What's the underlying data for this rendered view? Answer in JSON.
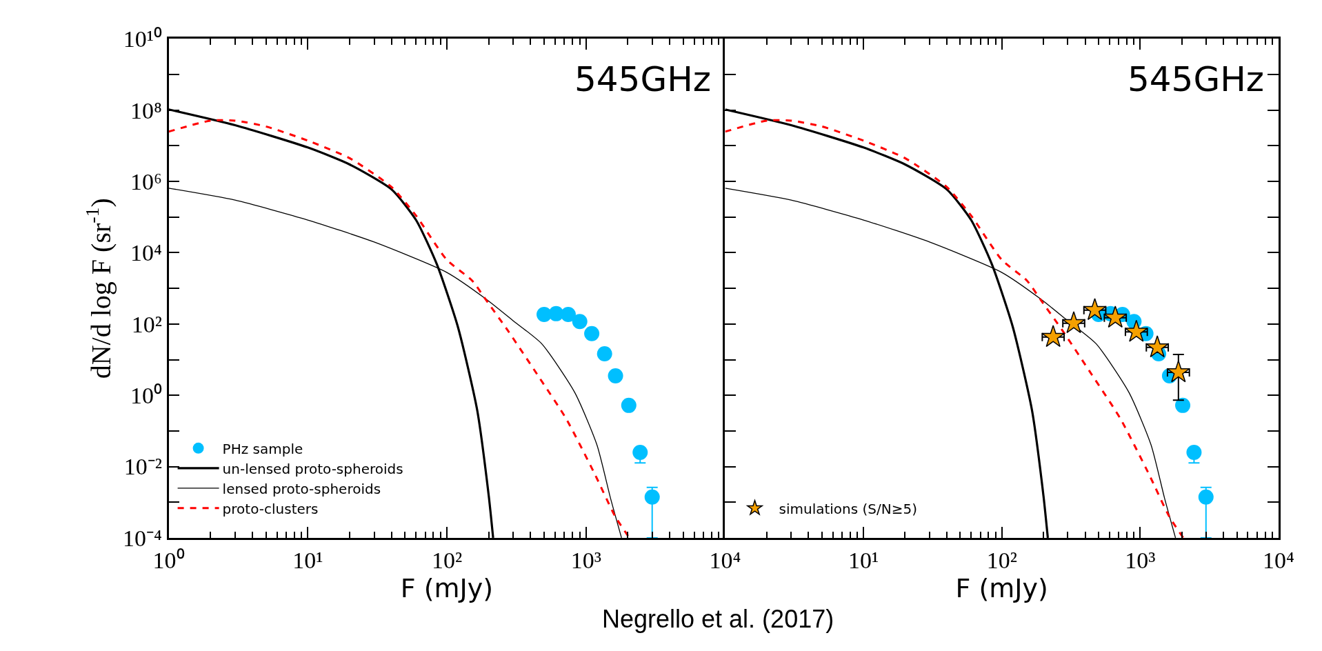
{
  "chart_data": [
    {
      "type": "line",
      "xlabel": "F (mJy)",
      "ylabel": "dN/d log F (sr$^{-1}$)",
      "log": "xy",
      "legend": "bottom left",
      "annotations": [
        "545GHz",
        "Negrello et al. (2017)"
      ],
      "xlim": [
        1,
        10000
      ],
      "ylim": [
        0.0001,
        10000000000
      ],
      "xticks": [
        {
          "value": 1,
          "label": "10⁰"
        },
        {
          "value": 2,
          "label": null
        },
        {
          "value": 3,
          "label": null
        },
        {
          "value": 4,
          "label": null
        },
        {
          "value": 5,
          "label": null
        },
        {
          "value": 6,
          "label": null
        },
        {
          "value": 7,
          "label": null
        },
        {
          "value": 8,
          "label": null
        },
        {
          "value": 9,
          "label": null
        },
        {
          "value": 10,
          "label": "10¹"
        },
        {
          "value": 20,
          "label": null
        },
        {
          "value": 30,
          "label": null
        },
        {
          "value": 40,
          "label": null
        },
        {
          "value": 50,
          "label": null
        },
        {
          "value": 60,
          "label": null
        },
        {
          "value": 70,
          "label": null
        },
        {
          "value": 80,
          "label": null
        },
        {
          "value": 90,
          "label": null
        },
        {
          "value": 100,
          "label": "10²"
        },
        {
          "value": 200,
          "label": null
        },
        {
          "value": 300,
          "label": null
        },
        {
          "value": 400,
          "label": null
        },
        {
          "value": 500,
          "label": null
        },
        {
          "value": 600,
          "label": null
        },
        {
          "value": 700,
          "label": null
        },
        {
          "value": 800,
          "label": null
        },
        {
          "value": 900,
          "label": null
        },
        {
          "value": 1000,
          "label": "10³"
        },
        {
          "value": 2000,
          "label": null
        },
        {
          "value": 3000,
          "label": null
        },
        {
          "value": 4000,
          "label": null
        },
        {
          "value": 5000,
          "label": null
        },
        {
          "value": 6000,
          "label": null
        },
        {
          "value": 7000,
          "label": null
        },
        {
          "value": 8000,
          "label": null
        },
        {
          "value": 9000,
          "label": null
        },
        {
          "value": 10000,
          "label": "10⁴"
        }
      ],
      "yticks": [
        {
          "value": 0.0001,
          "label": "10⁻⁴"
        },
        {
          "value": 0.001,
          "label": null
        },
        {
          "value": 0.01,
          "label": "10⁻²"
        },
        {
          "value": 0.1,
          "label": null
        },
        {
          "value": 1,
          "label": "10⁰"
        },
        {
          "value": 10,
          "label": null
        },
        {
          "value": 100,
          "label": "10²"
        },
        {
          "value": 1000,
          "label": null
        },
        {
          "value": 10000,
          "label": "10⁴"
        },
        {
          "value": 100000,
          "label": null
        },
        {
          "value": 1000000,
          "label": "10⁶"
        },
        {
          "value": 10000000,
          "label": null
        },
        {
          "value": 100000000,
          "label": "10⁸"
        },
        {
          "value": 1000000000,
          "label": null
        },
        {
          "value": 10000000000,
          "label": "10¹⁰"
        }
      ],
      "series": [
        {
          "name": "PHz sample",
          "type": "scatter",
          "marker": "circle",
          "color": "#00bfff",
          "x": [
            500,
            610,
            745,
            902,
            1100,
            1360,
            1630,
            2030,
            2450,
            2990
          ],
          "values": [
            186,
            195,
            186,
            117,
            54,
            14.6,
            3.5,
            0.52,
            0.025,
            0.0014
          ],
          "errors": [
            null,
            null,
            null,
            null,
            null,
            null,
            null,
            null,
            [
              0.0126,
              0.025
            ],
            [
              0.0001,
              0.0026
            ]
          ]
        },
        {
          "name": "un-lensed proto-spheroids",
          "line_style": "solid",
          "color": "#000000",
          "x": [
            1,
            3,
            10,
            20,
            40,
            60,
            84.6,
            120,
            165,
            200,
            215
          ],
          "values": [
            105000000,
            38000000,
            9000000,
            3000000,
            600000,
            83000,
            4800,
            83,
            0.39,
            0.0015,
            0.0001
          ]
        },
        {
          "name": "lensed proto-spheroids",
          "line_style": "solid",
          "color": "#000000",
          "x": [
            1,
            3,
            10,
            30,
            100,
            190,
            300,
            480,
            830,
            1200,
            1500,
            1800
          ],
          "values": [
            650000,
            300000,
            83000,
            20000,
            2800,
            510,
            123,
            28,
            1.2,
            0.04,
            0.0013,
            0.0001
          ]
        },
        {
          "name": "proto-clusters",
          "line_style": "dashed",
          "color": "#ff0000",
          "x": [
            1,
            2,
            3,
            5,
            10,
            20,
            40,
            60,
            100,
            152,
            190,
            274,
            447,
            720,
            1160,
            1620,
            2050
          ],
          "values": [
            25000000,
            51000000,
            51000000,
            35000000,
            14000000,
            4500000,
            700000,
            110000,
            6300,
            1650,
            490,
            66,
            3.8,
            0.22,
            0.006,
            0.0004,
            0.0001
          ]
        }
      ]
    },
    {
      "type": "line",
      "xlabel": "F (mJy)",
      "log": "xy",
      "legend": "bottom left",
      "tick_labels": "x",
      "annotations": [
        "545GHz"
      ],
      "xlim": [
        1,
        10000
      ],
      "ylim": [
        0.0001,
        10000000000
      ],
      "xticks": [
        {
          "value": 1,
          "label": null
        },
        {
          "value": 2,
          "label": null
        },
        {
          "value": 3,
          "label": null
        },
        {
          "value": 4,
          "label": null
        },
        {
          "value": 5,
          "label": null
        },
        {
          "value": 6,
          "label": null
        },
        {
          "value": 7,
          "label": null
        },
        {
          "value": 8,
          "label": null
        },
        {
          "value": 9,
          "label": null
        },
        {
          "value": 10,
          "label": "10¹"
        },
        {
          "value": 20,
          "label": null
        },
        {
          "value": 30,
          "label": null
        },
        {
          "value": 40,
          "label": null
        },
        {
          "value": 50,
          "label": null
        },
        {
          "value": 60,
          "label": null
        },
        {
          "value": 70,
          "label": null
        },
        {
          "value": 80,
          "label": null
        },
        {
          "value": 90,
          "label": null
        },
        {
          "value": 100,
          "label": "10²"
        },
        {
          "value": 200,
          "label": null
        },
        {
          "value": 300,
          "label": null
        },
        {
          "value": 400,
          "label": null
        },
        {
          "value": 500,
          "label": null
        },
        {
          "value": 600,
          "label": null
        },
        {
          "value": 700,
          "label": null
        },
        {
          "value": 800,
          "label": null
        },
        {
          "value": 900,
          "label": null
        },
        {
          "value": 1000,
          "label": "10³"
        },
        {
          "value": 2000,
          "label": null
        },
        {
          "value": 3000,
          "label": null
        },
        {
          "value": 4000,
          "label": null
        },
        {
          "value": 5000,
          "label": null
        },
        {
          "value": 6000,
          "label": null
        },
        {
          "value": 7000,
          "label": null
        },
        {
          "value": 8000,
          "label": null
        },
        {
          "value": 9000,
          "label": null
        },
        {
          "value": 10000,
          "label": "10⁴"
        }
      ],
      "yticks": [
        {
          "value": 0.0001,
          "label": null
        },
        {
          "value": 0.001,
          "label": null
        },
        {
          "value": 0.01,
          "label": null
        },
        {
          "value": 0.1,
          "label": null
        },
        {
          "value": 1,
          "label": null
        },
        {
          "value": 10,
          "label": null
        },
        {
          "value": 100,
          "label": null
        },
        {
          "value": 1000,
          "label": null
        },
        {
          "value": 10000,
          "label": null
        },
        {
          "value": 100000,
          "label": null
        },
        {
          "value": 1000000,
          "label": null
        },
        {
          "value": 10000000,
          "label": null
        },
        {
          "value": 100000000,
          "label": null
        },
        {
          "value": 1000000000,
          "label": null
        },
        {
          "value": 10000000000,
          "label": null
        }
      ],
      "series": [
        {
          "type": "scatter",
          "marker": "circle",
          "color": "#00bfff",
          "x": [
            500,
            610,
            745,
            902,
            1100,
            1360,
            1630,
            2030,
            2450,
            2990
          ],
          "values": [
            186,
            195,
            186,
            117,
            54,
            14.6,
            3.5,
            0.52,
            0.025,
            0.0014
          ],
          "errors": [
            null,
            null,
            null,
            null,
            null,
            null,
            null,
            null,
            [
              0.0126,
              0.025
            ],
            [
              0.0001,
              0.0026
            ]
          ]
        },
        {
          "line_style": "solid",
          "color": "#000000",
          "x": [
            1,
            3,
            10,
            20,
            40,
            60,
            84.6,
            120,
            165,
            200,
            215
          ],
          "values": [
            105000000,
            38000000,
            9000000,
            3000000,
            600000,
            83000,
            4800,
            83,
            0.39,
            0.0015,
            0.0001
          ]
        },
        {
          "line_style": "solid",
          "color": "#000000",
          "x": [
            1,
            3,
            10,
            30,
            100,
            190,
            300,
            480,
            830,
            1200,
            1500,
            1800
          ],
          "values": [
            650000,
            300000,
            83000,
            20000,
            2800,
            510,
            123,
            28,
            1.2,
            0.04,
            0.0013,
            0.0001
          ]
        },
        {
          "line_style": "dashed",
          "color": "#ff0000",
          "x": [
            1,
            2,
            3,
            5,
            10,
            20,
            40,
            60,
            100,
            152,
            190,
            274,
            447,
            720,
            1160,
            1620,
            2050
          ],
          "values": [
            25000000,
            51000000,
            51000000,
            35000000,
            14000000,
            4500000,
            700000,
            110000,
            6300,
            1650,
            490,
            66,
            3.8,
            0.22,
            0.006,
            0.0004,
            0.0001
          ]
        },
        {
          "name": "simulations (S/N≥5)",
          "type": "scatter",
          "marker": "star",
          "color": "#f5a000",
          "x": [
            235,
            331,
            470,
            661,
            938,
            1330,
            1890
          ],
          "values": [
            43,
            105,
            245,
            150,
            60,
            22,
            4.4
          ],
          "errors": [
            null,
            null,
            null,
            null,
            null,
            null,
            [
              0.73,
              14
            ]
          ],
          "xerrors": [
            [
              196,
              282
            ],
            [
              276,
              397
            ],
            [
              392,
              564
            ],
            [
              551,
              793
            ],
            [
              782,
              1126
            ],
            [
              1108,
              1596
            ],
            [
              1575,
              2268
            ]
          ]
        }
      ]
    }
  ]
}
